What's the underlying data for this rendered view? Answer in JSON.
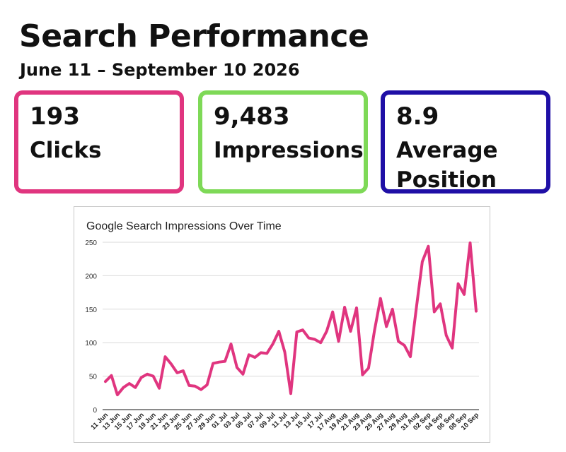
{
  "header": {
    "title": "Search Performance",
    "subtitle": "June 11 – September 10 2026"
  },
  "metrics": [
    {
      "value": "193",
      "label": "Clicks",
      "color": "#e0357f"
    },
    {
      "value": "9,483",
      "label": "Impressions",
      "color": "#7ed957"
    },
    {
      "value": "8.9",
      "label": "Average Position",
      "color": "#1f0fa6"
    }
  ],
  "chart_data": {
    "type": "line",
    "title": "Google Search Impressions Over Time",
    "xlabel": "",
    "ylabel": "",
    "ylim": [
      0,
      250
    ],
    "yticks": [
      0,
      50,
      100,
      150,
      200,
      250
    ],
    "grid": true,
    "legend": "none",
    "line_color": "#e0357f",
    "tick_labels": [
      "11 Jun",
      "13 Jun",
      "15 Jun",
      "17 Jun",
      "19 Jun",
      "21 Jun",
      "23 Jun",
      "25 Jun",
      "27 Jun",
      "29 Jun",
      "01 Jul",
      "03 Jul",
      "05 Jul",
      "07 Jul",
      "09 Jul",
      "11 Jul",
      "13 Jul",
      "15 Jul",
      "17 Jul",
      "17 Aug",
      "19 Aug",
      "21 Aug",
      "23 Aug",
      "25 Aug",
      "27 Aug",
      "29 Aug",
      "31 Aug",
      "02 Sep",
      "04 Sep",
      "06 Sep",
      "08 Sep",
      "10 Sep"
    ],
    "series": [
      {
        "values": [
          42,
          51,
          22,
          33,
          39,
          33,
          48,
          53,
          50,
          32,
          79,
          68,
          55,
          58,
          36,
          35,
          30,
          37,
          69,
          71,
          72,
          98,
          63,
          53,
          82,
          78,
          85,
          84,
          98,
          117,
          86,
          24,
          116,
          119,
          107,
          105,
          100,
          117,
          146,
          102,
          153,
          117,
          152,
          52,
          62,
          118,
          166,
          124,
          150,
          102,
          96,
          79,
          152,
          221,
          244,
          146,
          158,
          111,
          92,
          188,
          172,
          249,
          147
        ]
      }
    ]
  }
}
